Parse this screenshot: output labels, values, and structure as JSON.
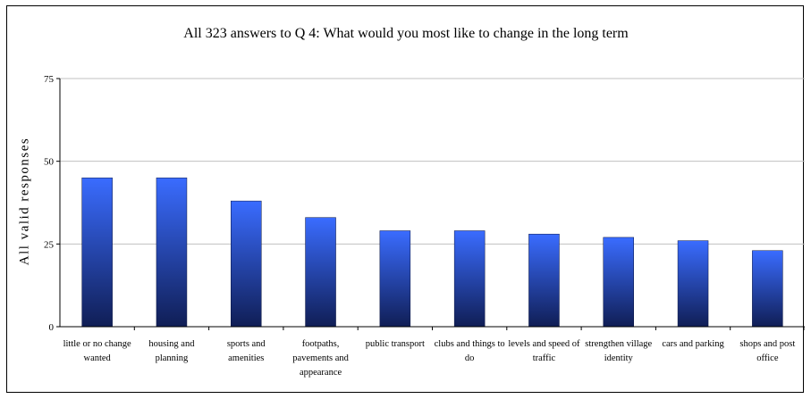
{
  "chart_data": {
    "type": "bar",
    "title": "All 323 answers to Q 4: What would you most like to change in the long term",
    "xlabel": "",
    "ylabel": "All valid responses",
    "ylim": [
      0,
      75
    ],
    "yticks": [
      0,
      25,
      50,
      75
    ],
    "grid": true,
    "categories": [
      "little or no change wanted",
      "housing and planning",
      "sports and amenities",
      "footpaths, pavements and appearance",
      "public transport",
      "clubs and things to do",
      "levels and speed of traffic",
      "strengthen village identity",
      "cars and parking",
      "shops and post office"
    ],
    "category_label_lines": [
      [
        "little or no change",
        "wanted"
      ],
      [
        "housing and",
        "planning"
      ],
      [
        "sports and",
        "amenities"
      ],
      [
        "footpaths,",
        "pavements and",
        "appearance"
      ],
      [
        "public transport"
      ],
      [
        "clubs and things to",
        "do"
      ],
      [
        "levels and speed of",
        "traffic"
      ],
      [
        "strengthen village",
        "identity"
      ],
      [
        "cars and parking"
      ],
      [
        "shops and post",
        "office"
      ]
    ],
    "values": [
      45,
      45,
      38,
      33,
      29,
      29,
      28,
      27,
      26,
      23
    ],
    "colors": {
      "bar_top": "#3a6cff",
      "bar_bottom": "#101e55",
      "grid": "#c0c0c0",
      "axis": "#000000"
    }
  }
}
